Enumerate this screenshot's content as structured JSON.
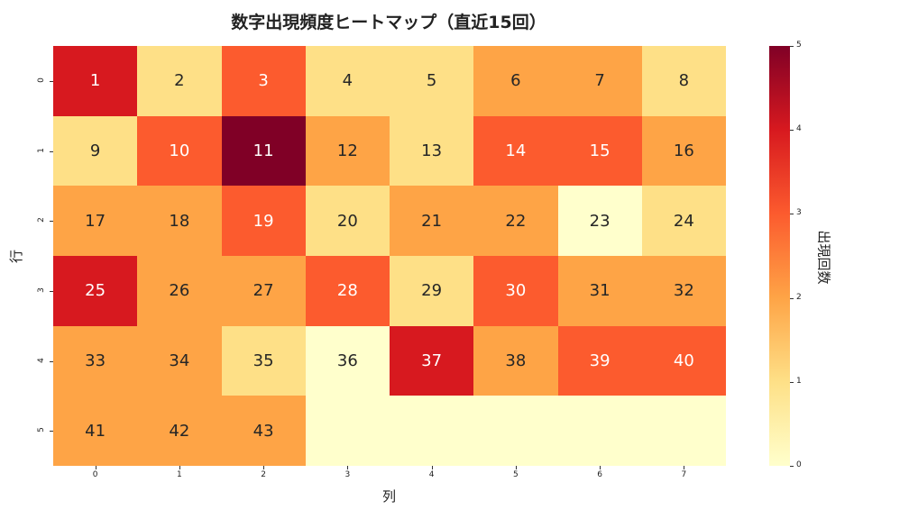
{
  "chart_data": {
    "type": "heatmap",
    "title": "数字出現頻度ヒートマップ（直近15回）",
    "xlabel": "列",
    "ylabel": "行",
    "x_ticks": [
      "0",
      "1",
      "2",
      "3",
      "4",
      "5",
      "6",
      "7"
    ],
    "y_ticks": [
      "0",
      "1",
      "2",
      "3",
      "4",
      "5"
    ],
    "colorbar": {
      "label": "出現回数",
      "min": 0,
      "max": 5,
      "ticks": [
        "0",
        "1",
        "2",
        "3",
        "4",
        "5"
      ],
      "colormap": "YlOrRd"
    },
    "numbers": [
      [
        1,
        2,
        3,
        4,
        5,
        6,
        7,
        8
      ],
      [
        9,
        10,
        11,
        12,
        13,
        14,
        15,
        16
      ],
      [
        17,
        18,
        19,
        20,
        21,
        22,
        23,
        24
      ],
      [
        25,
        26,
        27,
        28,
        29,
        30,
        31,
        32
      ],
      [
        33,
        34,
        35,
        36,
        37,
        38,
        39,
        40
      ],
      [
        41,
        42,
        43,
        null,
        null,
        null,
        null,
        null
      ]
    ],
    "values": [
      [
        4,
        1,
        3,
        1,
        1,
        2,
        2,
        1
      ],
      [
        1,
        3,
        5,
        2,
        1,
        3,
        3,
        2
      ],
      [
        2,
        2,
        3,
        1,
        2,
        2,
        0,
        1
      ],
      [
        4,
        2,
        2,
        3,
        1,
        3,
        2,
        2
      ],
      [
        2,
        2,
        1,
        0,
        4,
        2,
        3,
        3
      ],
      [
        2,
        2,
        2,
        0,
        0,
        0,
        0,
        0
      ]
    ]
  },
  "colors": {
    "0": "#ffffcc",
    "1": "#fee087",
    "2": "#fea446",
    "3": "#fc5b2e",
    "4": "#d7191f",
    "5": "#800026"
  }
}
